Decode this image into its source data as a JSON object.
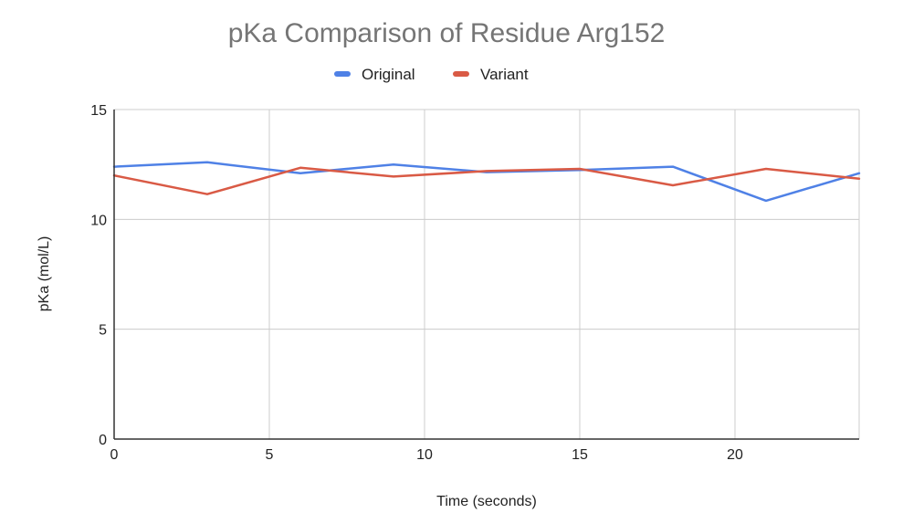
{
  "chart_data": {
    "type": "line",
    "title": "pKa Comparison of Residue Arg152",
    "xlabel": "Time (seconds)",
    "ylabel": "pKa (mol/L)",
    "xlim": [
      0,
      24
    ],
    "ylim": [
      0,
      15
    ],
    "x_ticks": [
      0,
      5,
      10,
      15,
      20
    ],
    "y_ticks": [
      0,
      5,
      10,
      15
    ],
    "grid": true,
    "legend_position": "top-center",
    "x": [
      0,
      3,
      6,
      9,
      12,
      15,
      18,
      21,
      24
    ],
    "series": [
      {
        "name": "Original",
        "color": "#4f81e6",
        "values": [
          12.4,
          12.6,
          12.1,
          12.5,
          12.15,
          12.25,
          12.4,
          10.85,
          12.1
        ]
      },
      {
        "name": "Variant",
        "color": "#d95a45",
        "values": [
          12.0,
          11.15,
          12.35,
          11.95,
          12.2,
          12.3,
          11.55,
          12.3,
          11.85
        ]
      }
    ]
  }
}
